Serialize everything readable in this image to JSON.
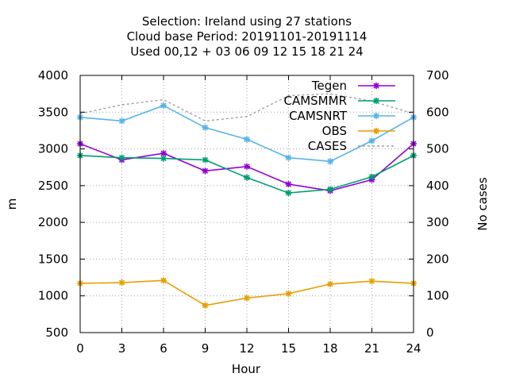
{
  "chart_data": {
    "type": "line",
    "title_lines": [
      "Selection: Ireland using    27 stations",
      "Cloud base   Period: 20191101-20191114",
      "Used  00,12  + 03 06 09 12 15 18 21 24"
    ],
    "xlabel": "Hour",
    "ylabel": "m",
    "y2label": "No cases",
    "x": [
      0,
      3,
      6,
      9,
      12,
      15,
      18,
      21,
      24
    ],
    "x_ticks": [
      "0",
      "3",
      "6",
      "9",
      "12",
      "15",
      "18",
      "21",
      "24"
    ],
    "xlim": [
      0,
      24
    ],
    "ylim": [
      500,
      4000
    ],
    "y_ticks": [
      "500",
      "1000",
      "1500",
      "2000",
      "2500",
      "3000",
      "3500",
      "4000"
    ],
    "y2lim": [
      0,
      700
    ],
    "y2_ticks": [
      "0",
      "100",
      "200",
      "300",
      "400",
      "500",
      "600",
      "700"
    ],
    "grid": true,
    "legend_position": "top-right",
    "series": [
      {
        "name": "Tegen",
        "axis": "y1",
        "color": "#9400d3",
        "marker": "star",
        "dash": "solid",
        "values": [
          3070,
          2850,
          2940,
          2700,
          2760,
          2520,
          2430,
          2580,
          3070
        ]
      },
      {
        "name": "CAMSMMR",
        "axis": "y1",
        "color": "#009e73",
        "marker": "star",
        "dash": "solid",
        "values": [
          2910,
          2880,
          2870,
          2850,
          2610,
          2400,
          2450,
          2620,
          2910
        ]
      },
      {
        "name": "CAMSNRT",
        "axis": "y1",
        "color": "#56b4e9",
        "marker": "star",
        "dash": "solid",
        "values": [
          3430,
          3380,
          3590,
          3290,
          3130,
          2880,
          2830,
          3110,
          3430
        ]
      },
      {
        "name": "OBS",
        "axis": "y1",
        "color": "#e69f00",
        "marker": "star",
        "dash": "solid",
        "values": [
          1170,
          1180,
          1210,
          870,
          970,
          1030,
          1160,
          1200,
          1170
        ]
      },
      {
        "name": "CASES",
        "axis": "y2",
        "color": "#a0a0a0",
        "marker": "none",
        "dash": "dashed",
        "values": [
          596,
          620,
          634,
          576,
          588,
          645,
          650,
          630,
          596
        ]
      }
    ]
  }
}
